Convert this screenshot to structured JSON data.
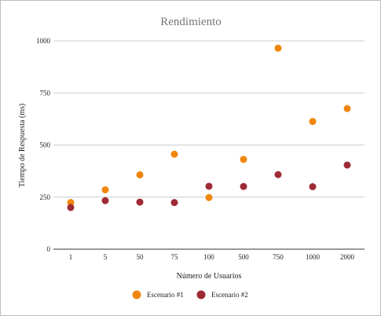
{
  "chart_data": {
    "type": "scatter",
    "title": "Rendimiento",
    "xlabel": "Número de Usuarios",
    "ylabel": "Tiempo de Respuesta (ms)",
    "categories": [
      "1",
      "5",
      "50",
      "75",
      "100",
      "500",
      "750",
      "1000",
      "2000"
    ],
    "y_ticks": [
      "0",
      "250",
      "500",
      "750",
      "1000"
    ],
    "ylim": [
      0,
      1000
    ],
    "grid": true,
    "legend_position": "bottom",
    "series": [
      {
        "name": "Escenario #1",
        "color": "#f0860e",
        "values": [
          224,
          285,
          357,
          456,
          248,
          431,
          965,
          613,
          675
        ]
      },
      {
        "name": "Escenario #2",
        "color": "#9e2a36",
        "values": [
          200,
          233,
          226,
          224,
          302,
          301,
          358,
          300,
          404
        ]
      }
    ]
  }
}
